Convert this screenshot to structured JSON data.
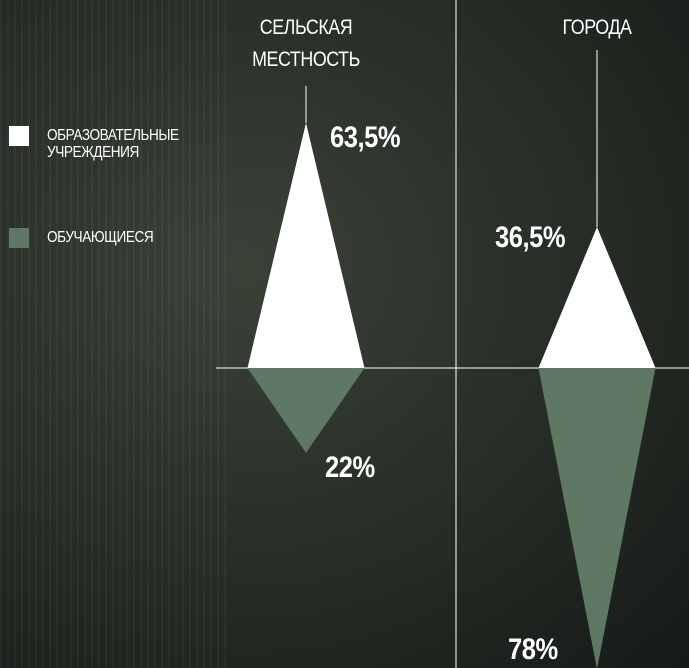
{
  "chart_data": {
    "type": "triangle",
    "categories": [
      "СЕЛЬСКАЯ МЕСТНОСТЬ",
      "ГОРОДА"
    ],
    "series": [
      {
        "name": "ОБРАЗОВАТЕЛЬНЫЕ УЧРЕЖДЕНИЯ",
        "color": "#ffffff",
        "values": [
          63.5,
          36.5
        ],
        "value_labels": [
          "63,5%",
          "36,5%"
        ]
      },
      {
        "name": "ОБУЧАЮЩИЕСЯ",
        "color": "#5f7864",
        "values": [
          22,
          78
        ],
        "value_labels": [
          "22%",
          "78%"
        ]
      }
    ]
  }
}
